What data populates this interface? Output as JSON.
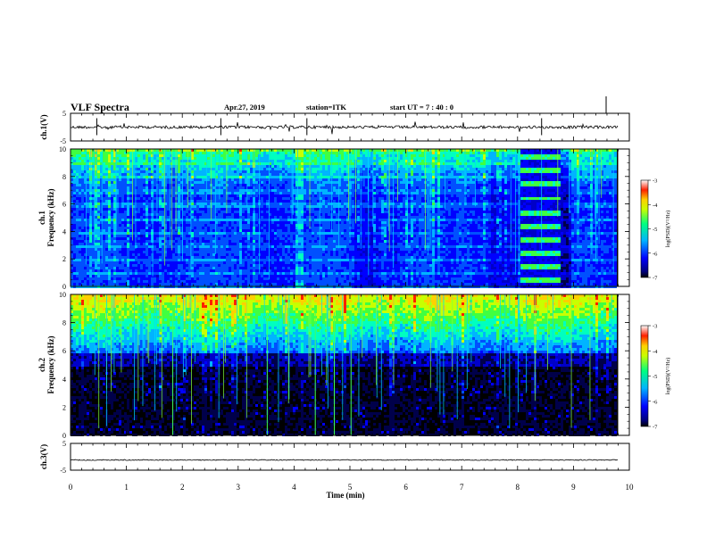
{
  "header": {
    "title": "VLF Spectra",
    "date": "Apr.27, 2019",
    "station": "station=ITK",
    "start_ut": "start UT =   7 : 40 : 0"
  },
  "chart_data": [
    {
      "type": "line",
      "panel": "ch1-waveform",
      "ylabel": "ch.1(V)",
      "ylim": [
        -5,
        5
      ],
      "yticks": [
        "5",
        "-5"
      ],
      "baseline": 0
    },
    {
      "type": "heatmap",
      "panel": "ch1-spectrogram",
      "ylabel": "ch.1\nFrequency (kHz)",
      "ylim": [
        0,
        10
      ],
      "yticks": [
        "0",
        "2",
        "4",
        "6",
        "8",
        "10"
      ],
      "xlim": [
        0,
        10
      ],
      "colorbar": {
        "label": "log(PSD)(V²/Hz)",
        "range": [
          -7,
          -3
        ],
        "ticks": [
          "-3",
          "-4",
          "-5",
          "-6",
          "-7"
        ]
      },
      "features": {
        "bright_band_near_min": 4.05,
        "band_structure_interval_min": [
          8.05,
          8.75
        ],
        "data_end_min": 9.8
      }
    },
    {
      "type": "heatmap",
      "panel": "ch2-spectrogram",
      "ylabel": "ch.2\nFrequency (kHz)",
      "ylim": [
        0,
        10
      ],
      "yticks": [
        "0",
        "2",
        "4",
        "6",
        "8",
        "10"
      ],
      "xlim": [
        0,
        10
      ],
      "colorbar": {
        "label": "log(PSD)(V²/Hz)",
        "range": [
          -7,
          -3
        ],
        "ticks": [
          "-3",
          "-4",
          "-5",
          "-6",
          "-7"
        ]
      }
    },
    {
      "type": "line",
      "panel": "ch3-waveform",
      "ylabel": "ch.3(V)",
      "ylim": [
        -5,
        5
      ],
      "yticks": [
        "5",
        "-5"
      ],
      "baseline": -1.2
    }
  ],
  "xaxis": {
    "label": "Time (min)",
    "ticks": [
      "0",
      "1",
      "2",
      "3",
      "4",
      "5",
      "6",
      "7",
      "8",
      "9",
      "10"
    ],
    "xlim": [
      0,
      10
    ]
  },
  "colors": {
    "colormap": [
      "#000000",
      "#0000ff",
      "#00c8ff",
      "#00ff60",
      "#ffff00",
      "#ff0000",
      "#ffffff"
    ],
    "axis": "#000000"
  }
}
